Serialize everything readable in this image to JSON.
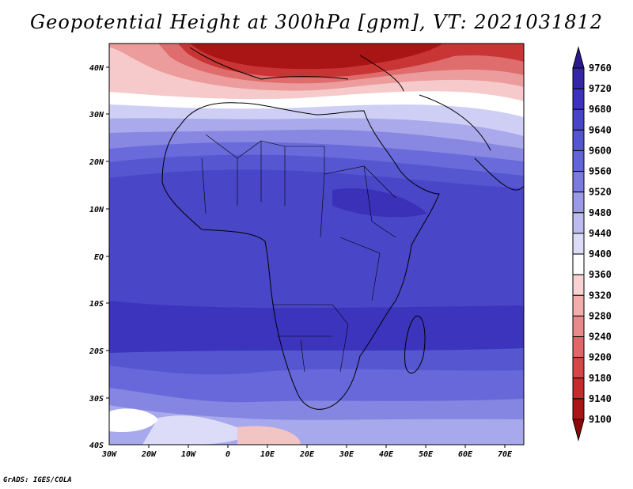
{
  "title": "Geopotential Height at 300hPa [gpm], VT: 2021031812",
  "credit": "GrADS: IGES/COLA",
  "map": {
    "lon_labels": [
      "30W",
      "20W",
      "10W",
      "0",
      "10E",
      "20E",
      "30E",
      "40E",
      "50E",
      "60E",
      "70E"
    ],
    "lat_labels": [
      "40N",
      "30N",
      "20N",
      "10N",
      "EQ",
      "10S",
      "20S",
      "30S",
      "40S"
    ],
    "lon_range": [
      -30,
      75
    ],
    "lat_range": [
      -40,
      45
    ]
  },
  "colorbar": {
    "levels": [
      "9760",
      "9720",
      "9680",
      "9640",
      "9600",
      "9560",
      "9520",
      "9480",
      "9440",
      "9400",
      "9360",
      "9320",
      "9280",
      "9240",
      "9200",
      "9180",
      "9140",
      "9100"
    ],
    "colors": [
      "#2b1a8e",
      "#3526a6",
      "#3b33bd",
      "#4744c6",
      "#5555cf",
      "#6464d9",
      "#7a7ae0",
      "#9a9ae8",
      "#bcbcf1",
      "#dcdcf8",
      "#ffffff",
      "#f9d2d2",
      "#f2adad",
      "#e98a8a",
      "#df6767",
      "#d34747",
      "#c42b2b",
      "#a91414",
      "#8a0a0a"
    ]
  }
}
